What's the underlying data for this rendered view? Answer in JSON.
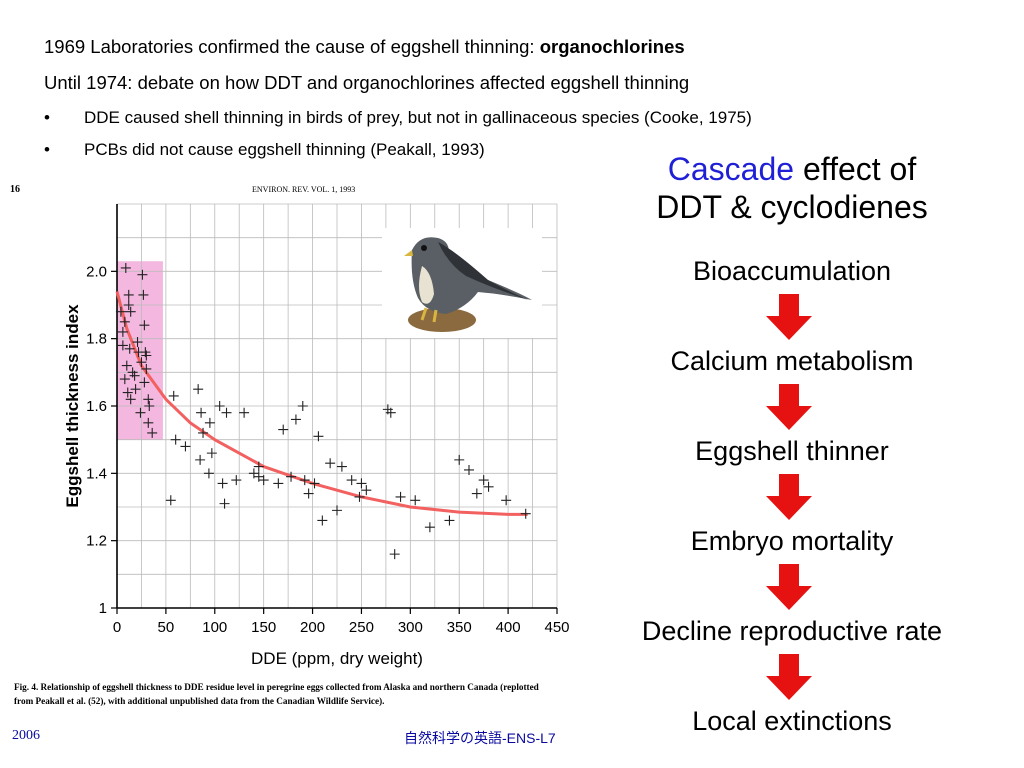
{
  "header": {
    "line1_prefix": "1969  Laboratories confirmed the cause of eggshell thinning: ",
    "line1_bold": "organochlorines",
    "line2": "Until 1974: debate on how DDT and organochlorines affected eggshell thinning",
    "bullets": [
      "DDE caused shell thinning in birds of prey, but not in gallinaceous species (Cooke, 1975)",
      "PCBs did not cause eggshell thinning  (Peakall, 1993)"
    ],
    "bullet_symbol": "•"
  },
  "figure": {
    "page_number": "16",
    "journal_header": "ENVIRON. REV. VOL. 1, 1993",
    "caption_line1": "Fig. 4. Relationship of eggshell thickness to DDE residue level in peregrine eggs collected from Alaska and northern Canada (replotted",
    "caption_line2": "from Peakall et al. (52), with additional unpublished data from the Canadian Wildlife Service).",
    "highlight_color": "#f4b8e0",
    "curve_color": "#f26060",
    "image_icon": "peregrine-falcon-icon"
  },
  "chart_data": {
    "type": "scatter",
    "xlabel": "DDE (ppm, dry weight)",
    "ylabel": "Eggshell  thickness  index",
    "xlim": [
      0,
      450
    ],
    "ylim": [
      1.0,
      2.2
    ],
    "x_ticks": [
      0,
      50,
      100,
      150,
      200,
      250,
      300,
      350,
      400,
      450
    ],
    "y_ticks": [
      1,
      1.2,
      1.4,
      1.6,
      1.8,
      2.0
    ],
    "y_tick_labels": [
      "1",
      "1.2",
      "1.4",
      "1.6",
      "1.8",
      "2.0"
    ],
    "grid": true,
    "highlight_band": {
      "x": [
        0,
        47
      ],
      "y": [
        1.5,
        2.03
      ]
    },
    "trend_curve": {
      "x": [
        0,
        10,
        25,
        50,
        75,
        100,
        150,
        200,
        250,
        300,
        350,
        400,
        420
      ],
      "y": [
        1.94,
        1.83,
        1.72,
        1.62,
        1.55,
        1.5,
        1.42,
        1.37,
        1.33,
        1.3,
        1.285,
        1.278,
        1.278
      ]
    },
    "points": {
      "x": [
        9,
        13,
        6,
        14,
        28,
        25,
        4,
        6,
        10,
        12,
        18,
        22,
        27,
        30,
        8,
        11,
        14,
        16,
        24,
        32,
        26,
        29,
        33,
        8,
        12,
        19,
        21,
        28,
        32,
        36,
        30,
        58,
        60,
        55,
        83,
        86,
        88,
        95,
        97,
        94,
        85,
        105,
        108,
        110,
        122,
        145,
        150,
        130,
        140,
        165,
        170,
        183,
        178,
        190,
        192,
        196,
        202,
        206,
        210,
        218,
        225,
        240,
        248,
        255,
        280,
        284,
        277,
        290,
        305,
        320,
        340,
        350,
        368,
        375,
        380,
        398,
        418,
        70,
        112,
        145,
        230,
        250,
        360
      ],
      "y": [
        2.01,
        1.77,
        1.82,
        1.88,
        1.84,
        1.73,
        1.88,
        1.78,
        1.72,
        1.9,
        1.69,
        1.76,
        1.93,
        1.75,
        1.68,
        1.64,
        1.62,
        1.7,
        1.58,
        1.62,
        1.99,
        1.76,
        1.6,
        1.85,
        1.93,
        1.65,
        1.79,
        1.67,
        1.55,
        1.52,
        1.71,
        1.63,
        1.5,
        1.32,
        1.65,
        1.58,
        1.52,
        1.55,
        1.46,
        1.4,
        1.44,
        1.6,
        1.37,
        1.31,
        1.38,
        1.42,
        1.38,
        1.58,
        1.4,
        1.37,
        1.53,
        1.56,
        1.39,
        1.6,
        1.38,
        1.34,
        1.37,
        1.51,
        1.26,
        1.43,
        1.29,
        1.38,
        1.33,
        1.35,
        1.58,
        1.16,
        1.59,
        1.33,
        1.32,
        1.24,
        1.26,
        1.44,
        1.34,
        1.38,
        1.36,
        1.32,
        1.28,
        1.48,
        1.58,
        1.39,
        1.42,
        1.37,
        1.41
      ]
    }
  },
  "cascade": {
    "title_accent": "Cascade",
    "title_rest": " effect of",
    "title_line2": "DDT & cyclodienes",
    "steps": [
      "Bioaccumulation",
      "Calcium metabolism",
      "Eggshell thinner",
      "Embryo mortality",
      "Decline reproductive rate",
      "Local extinctions"
    ],
    "arrow_color": "#e61212",
    "arrow_icon": "down-arrow-icon"
  },
  "footer": {
    "year": "2006",
    "course": "自然科学の英語-ENS-L7"
  }
}
